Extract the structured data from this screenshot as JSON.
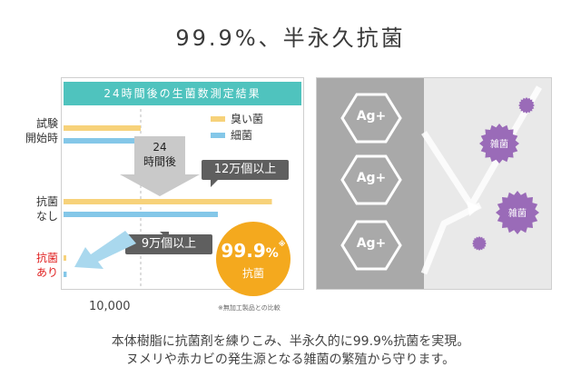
{
  "title": "99.9%、半永久抗菌",
  "chart_data": {
    "type": "bar",
    "title": "24時間後の生菌数測定結果",
    "categories": [
      "試験開始時",
      "抗菌なし",
      "抗菌あり"
    ],
    "category_lines": [
      [
        "試験",
        "開始時"
      ],
      [
        "抗菌",
        "なし"
      ],
      [
        "抗菌",
        "あり"
      ]
    ],
    "series": [
      {
        "name": "臭い菌",
        "color": "#f7d27a",
        "values": [
          10000,
          27000,
          300
        ]
      },
      {
        "name": "細菌",
        "color": "#84c7e8",
        "values": [
          10000,
          20000,
          400
        ]
      }
    ],
    "xticks": [
      "10,000"
    ],
    "xlim": [
      0,
      30000
    ]
  },
  "arrow_label": [
    "24",
    "時間後"
  ],
  "callouts": {
    "top": "12万個以上",
    "bottom": "9万個以上"
  },
  "badge": {
    "value": "99.9",
    "unit": "%",
    "mark": "※",
    "label": "抗菌"
  },
  "footnote": "※無加工製品との比較",
  "ions": [
    "Ag+",
    "Ag+",
    "Ag+"
  ],
  "germ_label": "雑菌",
  "description": [
    "本体樹脂に抗菌剤を練りこみ、半永久的に99.9%抗菌を実現。",
    "ヌメリや赤カビの発生源となる雑菌の繁殖から守ります。"
  ],
  "colors": {
    "accent": "#4fc3be",
    "badge": "#f4a91e",
    "germ": "#9a6bb8",
    "red": "#e02020"
  }
}
